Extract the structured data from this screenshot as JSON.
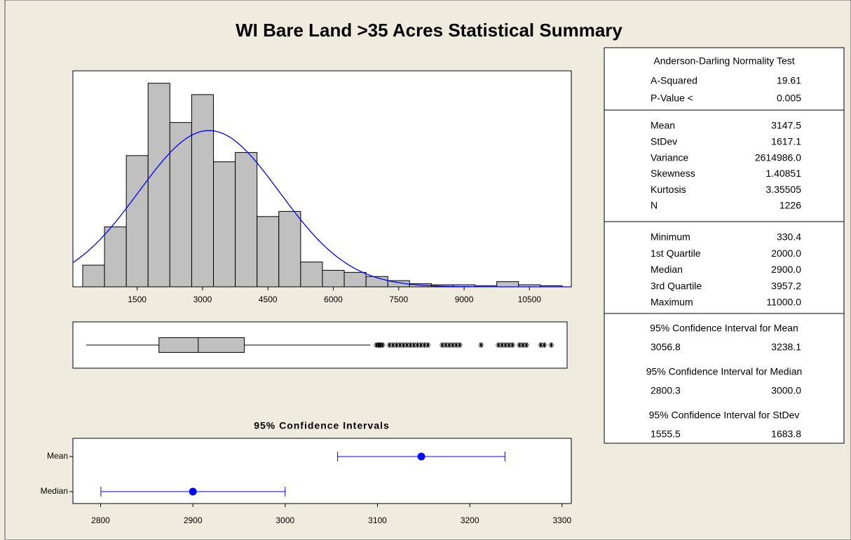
{
  "title": "WI Bare Land >35 Acres Statistical Summary",
  "chart_data": [
    {
      "type": "histogram",
      "bins": [
        250,
        750,
        1250,
        1750,
        2250,
        2750,
        3250,
        3750,
        4250,
        4750,
        5250,
        5750,
        6250,
        6750,
        7250,
        7750,
        8250,
        8750,
        9250,
        9750,
        10250,
        10750,
        11250
      ],
      "values": [
        21,
        58,
        127,
        197,
        159,
        186,
        121,
        130,
        68,
        73,
        24,
        16,
        14,
        10,
        6,
        3,
        2,
        2,
        1,
        5,
        2,
        1
      ],
      "color": "#c0c0c0",
      "curve_color": "#0000ff",
      "xlim": [
        25,
        11460
      ],
      "ylim": [
        0,
        209
      ],
      "xticks": [
        1500,
        3000,
        4500,
        6000,
        7500,
        9000,
        10500
      ]
    },
    {
      "type": "box",
      "min": 330.4,
      "q1": 2000,
      "median": 2900,
      "q3": 3957.2,
      "whisker_high": 6850,
      "outliers": [
        6990,
        7040,
        7080,
        7130,
        7290,
        7370,
        7450,
        7530,
        7610,
        7690,
        7770,
        7850,
        7930,
        8010,
        8090,
        8170,
        8500,
        8580,
        8660,
        8740,
        8820,
        8900,
        9390,
        9790,
        9870,
        9950,
        10030,
        10110,
        10270,
        10350,
        10430,
        10760,
        10840,
        11000
      ],
      "color": "#c0c0c0",
      "xlim": [
        25,
        11460
      ]
    },
    {
      "type": "interval",
      "title": "95% Confidence Intervals",
      "categories": [
        "Mean",
        "Median"
      ],
      "values": [
        3147.5,
        2900
      ],
      "lower": [
        3056.8,
        2800.3
      ],
      "upper": [
        3238.1,
        3000
      ],
      "color": "#0000ff",
      "xlim": [
        2770,
        3310
      ],
      "xticks": [
        2800,
        2900,
        3000,
        3100,
        3200,
        3300
      ]
    }
  ],
  "summary": {
    "sections": [
      {
        "title": "Anderson-Darling Normality Test",
        "rows": [
          [
            "A-Squared",
            "19.61"
          ],
          [
            "P-Value <",
            "0.005"
          ]
        ]
      },
      {
        "rows": [
          [
            "Mean",
            "3147.5"
          ],
          [
            "StDev",
            "1617.1"
          ],
          [
            "Variance",
            "2614986.0"
          ],
          [
            "Skewness",
            "1.40851"
          ],
          [
            "Kurtosis",
            "3.35505"
          ],
          [
            "N",
            "1226"
          ]
        ]
      },
      {
        "rows": [
          [
            "Minimum",
            "330.4"
          ],
          [
            "1st Quartile",
            "2000.0"
          ],
          [
            "Median",
            "2900.0"
          ],
          [
            "3rd Quartile",
            "3957.2"
          ],
          [
            "Maximum",
            "11000.0"
          ]
        ]
      }
    ],
    "intervals": [
      {
        "title": "95% Confidence Interval for Mean",
        "lower": "3056.8",
        "upper": "3238.1"
      },
      {
        "title": "95% Confidence Interval for Median",
        "lower": "2800.3",
        "upper": "3000.0"
      },
      {
        "title": "95% Confidence Interval for StDev",
        "lower": "1555.5",
        "upper": "1683.8"
      }
    ]
  }
}
